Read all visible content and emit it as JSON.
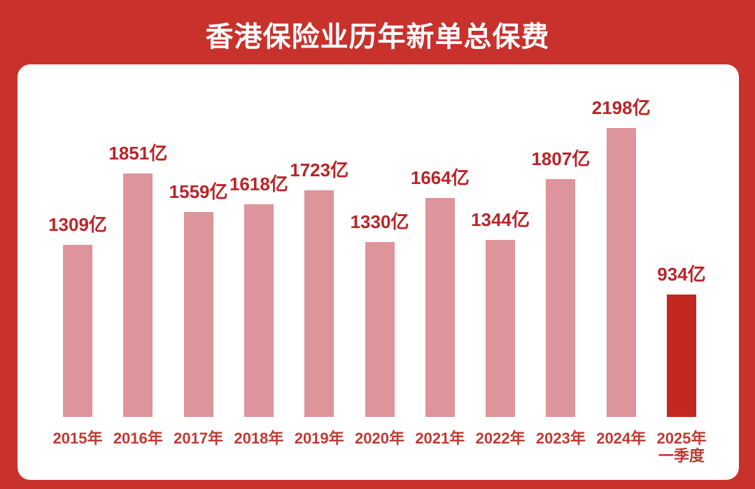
{
  "header": {
    "title": "香港保险业历年新单总保费"
  },
  "chart_data": {
    "type": "bar",
    "title": "香港保险业历年新单总保费",
    "categories": [
      "2015年",
      "2016年",
      "2017年",
      "2018年",
      "2019年",
      "2020年",
      "2021年",
      "2022年",
      "2023年",
      "2024年",
      "2025年\n一季度"
    ],
    "values": [
      1309,
      1851,
      1559,
      1618,
      1723,
      1330,
      1664,
      1344,
      1807,
      2198,
      934
    ],
    "value_labels": [
      "1309亿",
      "1851亿",
      "1559亿",
      "1618亿",
      "1723亿",
      "1330亿",
      "1664亿",
      "1344亿",
      "1807亿",
      "2198亿",
      "934亿"
    ],
    "unit": "亿",
    "highlight_index": 10,
    "ylim": [
      0,
      2300
    ],
    "grid": false,
    "legend_position": "none",
    "colors": {
      "background": "#c8312c",
      "card": "#ffffff",
      "bar": "#dd949a",
      "bar_highlight": "#c2281f",
      "value_label": "#bb2428",
      "axis_label": "#c03a31",
      "title_text": "#ffffff"
    }
  }
}
